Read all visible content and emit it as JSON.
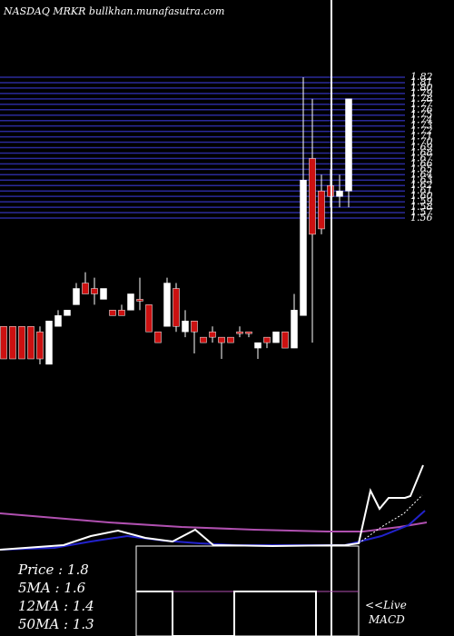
{
  "chart_data": {
    "type": "candlestick",
    "title": "NASDAQ MRKR bullkhan.munafasutra.com",
    "ylim": [
      1.3,
      1.82
    ],
    "yticks": [
      1.82,
      1.81,
      {
        "value": 1.8,
        "label": "1.80"
      },
      1.79,
      1.78,
      1.77,
      1.76,
      1.75,
      1.74,
      1.73,
      1.72,
      1.71,
      {
        "value": 1.7,
        "label": "1.70"
      },
      1.69,
      1.68,
      1.67,
      1.66,
      1.65,
      1.64,
      1.63,
      1.62,
      1.61,
      {
        "value": 1.6,
        "label": "1.60"
      },
      1.59,
      1.58,
      1.57,
      1.56
    ],
    "grid": true,
    "up_color": "#ffffff",
    "down_color": "#cc1111",
    "grid_color": "#2a2a9a",
    "open": [
      1.36,
      1.36,
      1.36,
      1.36,
      1.35,
      1.29,
      1.36,
      1.38,
      1.4,
      1.44,
      1.43,
      1.41,
      1.39,
      1.39,
      1.39,
      1.41,
      1.4,
      1.35,
      1.36,
      1.43,
      1.35,
      1.37,
      1.34,
      1.35,
      1.34,
      1.34,
      1.35,
      1.35,
      1.32,
      1.34,
      1.33,
      1.35,
      1.32,
      1.38,
      1.67,
      1.61,
      1.62,
      1.6,
      1.61
    ],
    "high": [
      1.36,
      1.36,
      1.36,
      1.36,
      1.36,
      1.37,
      1.39,
      1.39,
      1.44,
      1.46,
      1.45,
      1.43,
      1.39,
      1.4,
      1.42,
      1.45,
      1.4,
      1.35,
      1.45,
      1.44,
      1.39,
      1.37,
      1.34,
      1.36,
      1.34,
      1.34,
      1.36,
      1.35,
      1.33,
      1.34,
      1.35,
      1.35,
      1.42,
      1.82,
      1.78,
      1.64,
      1.65,
      1.64,
      1.78
    ],
    "low": [
      1.3,
      1.3,
      1.3,
      1.3,
      1.29,
      1.29,
      1.36,
      1.38,
      1.4,
      1.42,
      1.4,
      1.41,
      1.38,
      1.38,
      1.39,
      1.39,
      1.35,
      1.33,
      1.36,
      1.35,
      1.34,
      1.31,
      1.33,
      1.33,
      1.3,
      1.33,
      1.34,
      1.34,
      1.3,
      1.32,
      1.33,
      1.32,
      1.32,
      1.38,
      1.33,
      1.53,
      1.58,
      1.58,
      1.58
    ],
    "close": [
      1.3,
      1.3,
      1.3,
      1.3,
      1.3,
      1.37,
      1.38,
      1.39,
      1.43,
      1.42,
      1.42,
      1.43,
      1.38,
      1.38,
      1.42,
      1.41,
      1.35,
      1.33,
      1.44,
      1.36,
      1.37,
      1.35,
      1.33,
      1.34,
      1.33,
      1.33,
      1.35,
      1.35,
      1.33,
      1.33,
      1.35,
      1.32,
      1.39,
      1.63,
      1.53,
      1.54,
      1.6,
      1.61,
      1.78
    ],
    "stats": [
      "Price  : 1.8",
      "5MA : 1.6",
      "12MA : 1.4",
      "50MA : 1.3"
    ],
    "macd_label": "<<Live",
    "macd_label2": "MACD"
  }
}
